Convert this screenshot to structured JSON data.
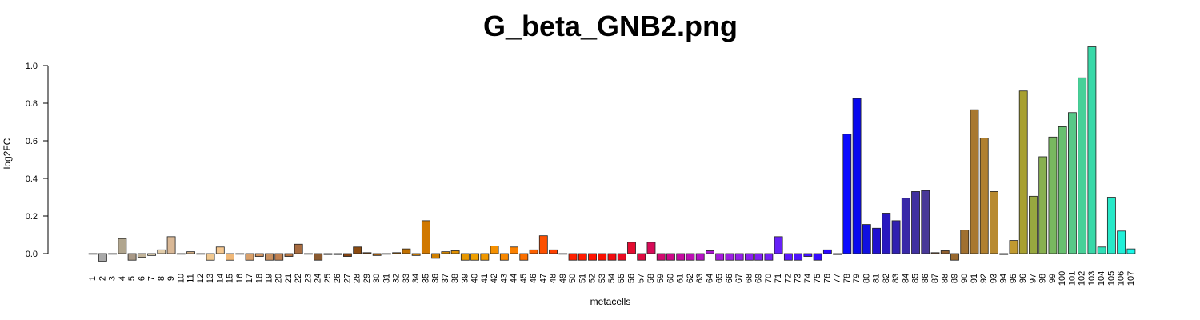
{
  "chart_data": {
    "type": "bar",
    "title": "G_beta_GNB2.png",
    "xlabel": "metacells",
    "ylabel": "log2FC",
    "ylim": [
      -0.045,
      1.1
    ],
    "yticks": [
      "0.0",
      "0.2",
      "0.4",
      "0.6",
      "0.8",
      "1.0"
    ],
    "categories": [
      "1",
      "2",
      "3",
      "4",
      "5",
      "6",
      "7",
      "8",
      "9",
      "10",
      "11",
      "12",
      "13",
      "14",
      "15",
      "16",
      "17",
      "18",
      "19",
      "20",
      "21",
      "22",
      "23",
      "24",
      "25",
      "26",
      "27",
      "28",
      "29",
      "30",
      "31",
      "32",
      "33",
      "34",
      "35",
      "36",
      "37",
      "38",
      "39",
      "40",
      "41",
      "42",
      "43",
      "44",
      "45",
      "46",
      "47",
      "48",
      "49",
      "50",
      "51",
      "52",
      "53",
      "54",
      "55",
      "56",
      "57",
      "58",
      "59",
      "60",
      "61",
      "62",
      "63",
      "64",
      "65",
      "66",
      "67",
      "68",
      "69",
      "70",
      "71",
      "72",
      "73",
      "74",
      "75",
      "76",
      "77",
      "78",
      "79",
      "80",
      "81",
      "82",
      "83",
      "84",
      "85",
      "86",
      "87",
      "88",
      "89",
      "90",
      "91",
      "92",
      "93",
      "94",
      "95",
      "96",
      "97",
      "98",
      "99",
      "100",
      "101",
      "102",
      "103",
      "104",
      "105",
      "106",
      "107"
    ],
    "values": [
      0.0,
      -0.04,
      0.0,
      0.08,
      -0.035,
      -0.02,
      -0.01,
      0.02,
      0.09,
      0.0,
      0.01,
      0.0,
      -0.035,
      0.035,
      -0.035,
      0.0,
      -0.035,
      -0.015,
      -0.035,
      -0.035,
      -0.015,
      0.05,
      0.0,
      -0.035,
      -0.005,
      -0.005,
      -0.015,
      0.035,
      0.005,
      -0.01,
      0.0,
      0.005,
      0.025,
      -0.01,
      0.175,
      -0.025,
      0.01,
      0.015,
      -0.035,
      -0.035,
      -0.035,
      0.04,
      -0.035,
      0.035,
      -0.035,
      0.02,
      0.095,
      0.02,
      0.0,
      -0.035,
      -0.035,
      -0.035,
      -0.035,
      -0.035,
      -0.035,
      0.06,
      -0.035,
      0.06,
      -0.035,
      -0.035,
      -0.035,
      -0.035,
      -0.035,
      0.015,
      -0.035,
      -0.035,
      -0.035,
      -0.035,
      -0.035,
      -0.035,
      0.09,
      -0.035,
      -0.035,
      -0.015,
      -0.035,
      0.02,
      -0.005,
      0.635,
      0.825,
      0.155,
      0.135,
      0.215,
      0.175,
      0.295,
      0.33,
      0.335,
      0.005,
      0.015,
      -0.035,
      0.125,
      0.765,
      0.615,
      0.33,
      -0.005,
      0.07,
      0.865,
      0.305,
      0.515,
      0.62,
      0.675,
      0.75,
      0.935,
      1.1,
      0.035,
      0.3,
      0.12,
      0.025
    ],
    "colors": [
      "#d3d3d3",
      "#a9a9a9",
      "#c8bfae",
      "#b0a58e",
      "#a89886",
      "#c2b49a",
      "#d8c8aa",
      "#e2cdaa",
      "#d9b896",
      "#e0c09a",
      "#dab48a",
      "#c9a06a",
      "#f0c890",
      "#f5c78f",
      "#f0b878",
      "#e8b07a",
      "#d9a06a",
      "#cc9060",
      "#c89060",
      "#c08050",
      "#b07040",
      "#a86c40",
      "#8c5530",
      "#8a5a30",
      "#805030",
      "#7a4820",
      "#804010",
      "#8a4a10",
      "#905010",
      "#a05c10",
      "#b06a10",
      "#b86a00",
      "#c07000",
      "#c87800",
      "#d07800",
      "#d08000",
      "#d88a00",
      "#e09000",
      "#e89800",
      "#f0a000",
      "#f09800",
      "#f59000",
      "#f88800",
      "#fa8000",
      "#fb7000",
      "#fc6000",
      "#fd5000",
      "#fe4000",
      "#fe3000",
      "#ff2000",
      "#ff1a00",
      "#ff1200",
      "#f81000",
      "#f00c10",
      "#ea0a20",
      "#e40c30",
      "#de0a40",
      "#d80a58",
      "#d20a70",
      "#cc0a88",
      "#c40ca0",
      "#bc10b4",
      "#b414c4",
      "#ac18d0",
      "#a41cda",
      "#9c20e2",
      "#9420e8",
      "#8a20ee",
      "#8020f2",
      "#7420f6",
      "#6620f8",
      "#5a18fa",
      "#4e14fb",
      "#4210fc",
      "#360cfd",
      "#2a08fe",
      "#2008ff",
      "#0a0aff",
      "#0808ee",
      "#1010e0",
      "#2010d0",
      "#2818c0",
      "#3020b0",
      "#3828a8",
      "#4030a0",
      "#483898",
      "#8a6040",
      "#906030",
      "#9a6a30",
      "#a07030",
      "#a87830",
      "#b08030",
      "#b88a30",
      "#c09030",
      "#c09a30",
      "#a8a030",
      "#98a840",
      "#88b050",
      "#78b860",
      "#68c070",
      "#58c888",
      "#48d098",
      "#38d8a8",
      "#30e0b8",
      "#28e8c8",
      "#20f0d8",
      "#18f8e8",
      "#10fff0"
    ]
  }
}
